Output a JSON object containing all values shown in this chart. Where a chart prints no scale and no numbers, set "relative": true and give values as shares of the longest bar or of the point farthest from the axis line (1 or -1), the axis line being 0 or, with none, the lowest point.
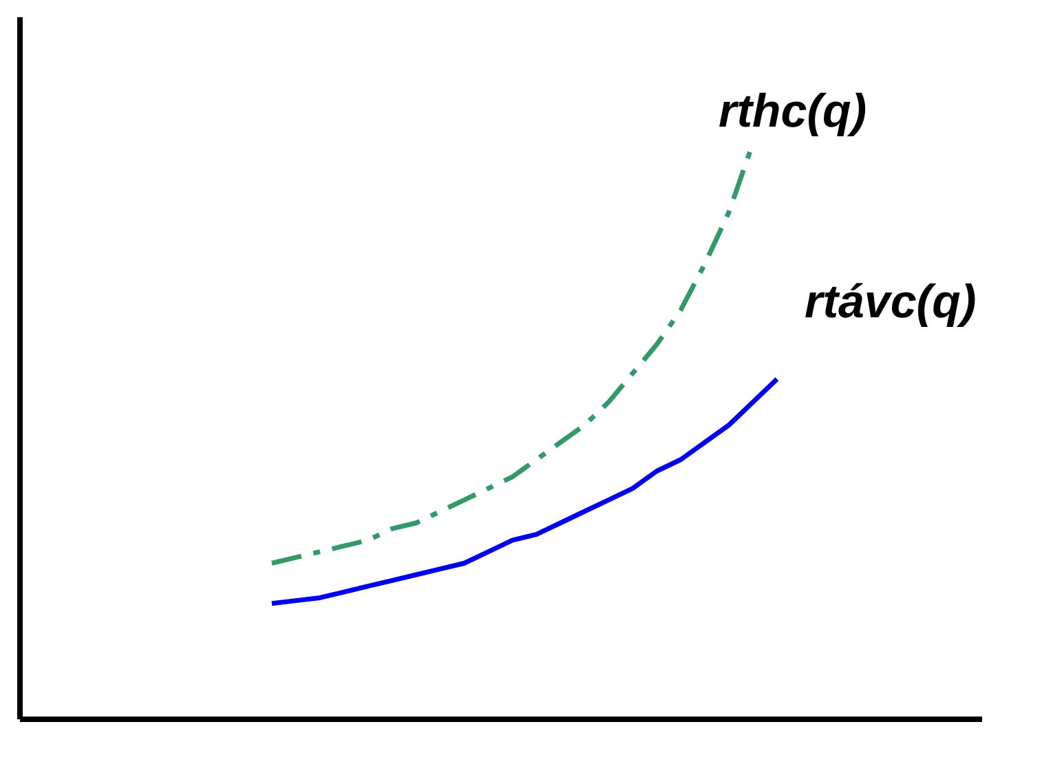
{
  "chart_data": {
    "type": "line",
    "relative": true,
    "legend": false,
    "grid": false,
    "marker": "none",
    "categories": [
      null,
      null,
      null,
      null,
      null,
      null,
      null,
      null,
      null,
      null,
      null,
      null,
      null,
      null,
      null,
      null,
      null,
      null,
      null,
      null,
      null,
      null,
      null,
      null,
      null,
      null,
      null,
      null,
      null,
      null,
      null,
      null,
      null,
      null,
      null,
      null,
      null,
      null,
      null,
      null
    ],
    "series": [
      {
        "name": "rthc(q)",
        "color": "#339966",
        "line_style": "dashed",
        "values": [
          null,
          null,
          null,
          null,
          null,
          null,
          null,
          null,
          null,
          null,
          0.27,
          0.28,
          0.29,
          0.3,
          0.31,
          0.33,
          0.34,
          0.36,
          0.38,
          0.4,
          0.42,
          0.45,
          0.48,
          0.51,
          0.55,
          0.6,
          0.65,
          0.71,
          0.79,
          0.88,
          1.0,
          null,
          null,
          null,
          null,
          null,
          null,
          null,
          null,
          null
        ]
      },
      {
        "name": "rtávc(q)",
        "color": "#0000ee",
        "line_style": "solid",
        "values": [
          null,
          null,
          null,
          null,
          null,
          null,
          null,
          null,
          null,
          null,
          0.2,
          0.205,
          0.21,
          0.22,
          0.23,
          0.24,
          0.25,
          0.26,
          0.27,
          0.29,
          0.31,
          0.32,
          0.34,
          0.36,
          0.38,
          0.4,
          0.43,
          0.45,
          0.48,
          0.51,
          0.55,
          0.59,
          null,
          null,
          null,
          null,
          null,
          null,
          null,
          null
        ]
      }
    ]
  }
}
